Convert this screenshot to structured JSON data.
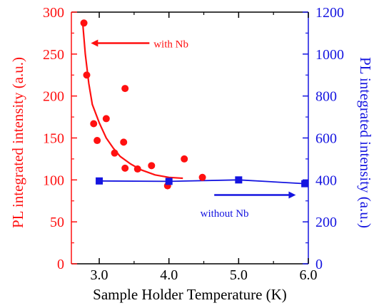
{
  "chart_data": {
    "type": "scatter",
    "xlabel": "Sample Holder Temperature (K)",
    "ylabel_left": "PL integrated intensity (a.u.)",
    "ylabel_right": "PL integrated intensity (a.u.)",
    "xlim": [
      2.6,
      6.0
    ],
    "ylim_left": [
      0,
      300
    ],
    "ylim_right": [
      0,
      1200
    ],
    "x_ticks": [
      "3.0",
      "4.0",
      "5.0",
      "6.0"
    ],
    "y_ticks_left": [
      "0",
      "50",
      "100",
      "150",
      "200",
      "250",
      "300"
    ],
    "y_ticks_right": [
      "0",
      "200",
      "400",
      "600",
      "800",
      "1000",
      "1200"
    ],
    "colors": {
      "left": "#ff1010",
      "right": "#1515e0",
      "axis": "#000000"
    },
    "series": [
      {
        "name": "with Nb",
        "axis": "left",
        "color": "#ff1010",
        "marker": "circle",
        "points": [
          [
            2.78,
            287
          ],
          [
            2.82,
            225
          ],
          [
            2.92,
            167
          ],
          [
            2.97,
            147
          ],
          [
            3.1,
            173
          ],
          [
            3.22,
            132
          ],
          [
            3.35,
            145
          ],
          [
            3.37,
            209
          ],
          [
            3.37,
            114
          ],
          [
            3.55,
            113
          ],
          [
            3.75,
            117
          ],
          [
            3.98,
            93
          ],
          [
            4.22,
            125
          ],
          [
            4.48,
            103
          ]
        ],
        "fit": [
          [
            2.76,
            290
          ],
          [
            2.8,
            250
          ],
          [
            2.85,
            215
          ],
          [
            2.9,
            190
          ],
          [
            3.0,
            168
          ],
          [
            3.1,
            150
          ],
          [
            3.2,
            138
          ],
          [
            3.3,
            128
          ],
          [
            3.45,
            119
          ],
          [
            3.6,
            112
          ],
          [
            3.8,
            106
          ],
          [
            4.0,
            103
          ],
          [
            4.2,
            102
          ]
        ]
      },
      {
        "name": "without Nb",
        "axis": "right",
        "color": "#1515e0",
        "marker": "square",
        "points": [
          [
            3.0,
            395
          ],
          [
            4.0,
            393
          ],
          [
            5.0,
            400
          ],
          [
            5.95,
            382
          ]
        ]
      }
    ],
    "annotations": [
      {
        "text": "with Nb",
        "x": 4.05,
        "y_left": 263,
        "arrow": "left"
      },
      {
        "text": "without Nb",
        "x": 4.85,
        "y_left": 63,
        "arrow": "right"
      }
    ]
  }
}
